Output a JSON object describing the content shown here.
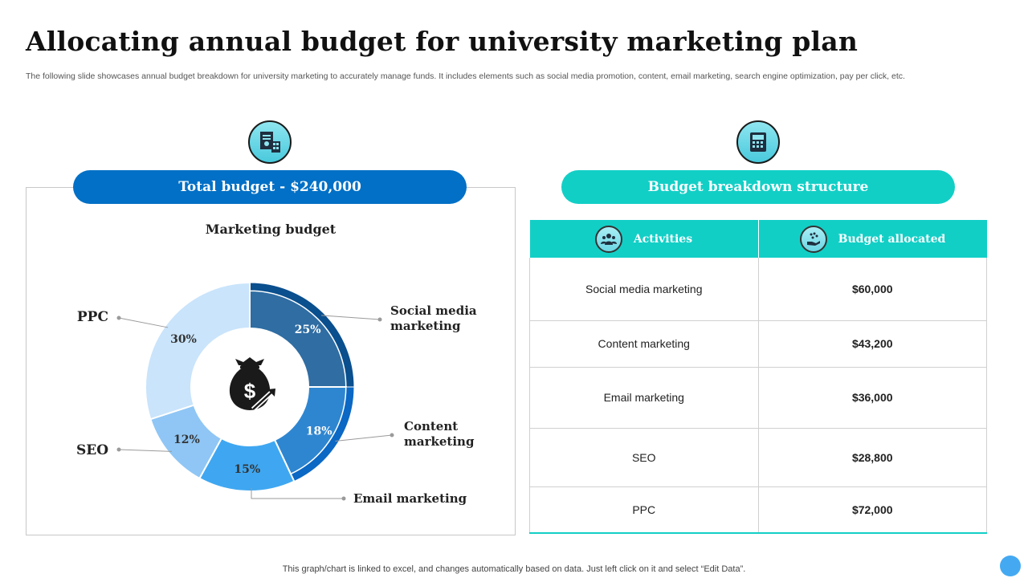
{
  "title": "Allocating annual budget for university marketing plan",
  "subtitle": "The following slide showcases annual budget breakdown for university marketing to accurately manage funds. It includes elements such as social media promotion, content, email marketing, search engine optimization, pay per click, etc.",
  "total_budget_label": "Total budget - $240,000",
  "breakdown_label": "Budget breakdown structure",
  "table": {
    "headers": [
      "Activities",
      "Budget allocated"
    ],
    "rows": [
      [
        "Social media marketing",
        "$60,000"
      ],
      [
        "Content marketing",
        "$43,200"
      ],
      [
        "Email marketing",
        "$36,000"
      ],
      [
        "SEO",
        "$28,800"
      ],
      [
        "PPC",
        "$72,000"
      ]
    ]
  },
  "footer": "This graph/chart is linked to excel, and changes automatically based on data. Just left click on it and select “Edit Data”.",
  "icons": [
    "budget-document-icon",
    "calculator-icon",
    "people-icon",
    "money-hand-icon",
    "money-bag-icon"
  ],
  "colors": {
    "primary_blue": "#0270c6",
    "teal": "#12cfc6"
  },
  "chart_data": {
    "type": "pie",
    "subtype": "donut",
    "title": "Marketing budget",
    "slices": [
      {
        "label": "Social media marketing",
        "label_lines": [
          "Social media",
          "marketing"
        ],
        "value": 25,
        "text": "25%",
        "color": "#2f6da3",
        "ring": "#0a4f8e"
      },
      {
        "label": "Content marketing",
        "label_lines": [
          "Content",
          "marketing"
        ],
        "value": 18,
        "text": "18%",
        "color": "#2f86d0",
        "ring": "#0b68c4"
      },
      {
        "label": "Email marketing",
        "label_lines": [
          "Email marketing"
        ],
        "value": 15,
        "text": "15%",
        "color": "#3fa7f1",
        "ring": null
      },
      {
        "label": "SEO",
        "label_lines": [
          "SEO"
        ],
        "value": 12,
        "text": "12%",
        "color": "#8fc6f5",
        "ring": null
      },
      {
        "label": "PPC",
        "label_lines": [
          "PPC"
        ],
        "value": 30,
        "text": "30%",
        "color": "#c9e4fb",
        "ring": null
      }
    ]
  }
}
